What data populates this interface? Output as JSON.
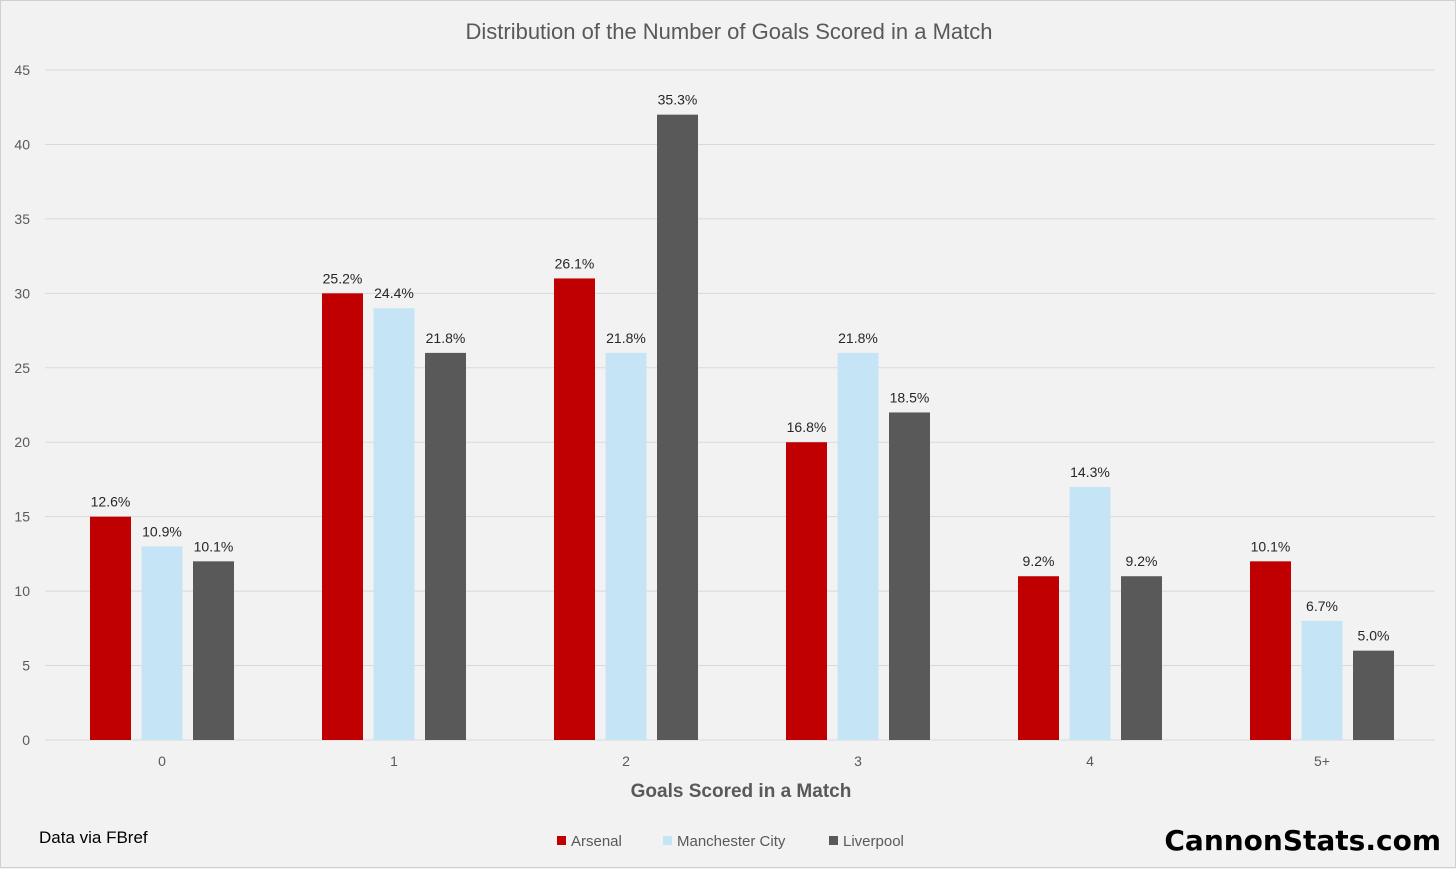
{
  "chart_data": {
    "type": "bar",
    "title": "Distribution of the Number of Goals Scored in a Match",
    "xlabel": "Goals Scored in a Match",
    "ylabel": "",
    "categories": [
      "0",
      "1",
      "2",
      "3",
      "4",
      "5+"
    ],
    "ylim": [
      0,
      45
    ],
    "yticks": [
      0,
      5,
      10,
      15,
      20,
      25,
      30,
      35,
      40,
      45
    ],
    "grid": true,
    "legend_position": "bottom",
    "series": [
      {
        "name": "Arsenal",
        "color": "#c00000",
        "values": [
          15,
          30,
          31,
          20,
          11,
          12
        ],
        "labels": [
          "12.6%",
          "25.2%",
          "26.1%",
          "16.8%",
          "9.2%",
          "10.1%"
        ]
      },
      {
        "name": "Manchester City",
        "color": "#c5e5f6",
        "values": [
          13,
          29,
          26,
          26,
          17,
          8
        ],
        "labels": [
          "10.9%",
          "24.4%",
          "21.8%",
          "21.8%",
          "14.3%",
          "6.7%"
        ]
      },
      {
        "name": "Liverpool",
        "color": "#595959",
        "values": [
          12,
          26,
          42,
          22,
          11,
          6
        ],
        "labels": [
          "10.1%",
          "21.8%",
          "35.3%",
          "18.5%",
          "9.2%",
          "5.0%"
        ]
      }
    ]
  },
  "source_note": "Data via FBref",
  "brand": "CannonStats.com"
}
